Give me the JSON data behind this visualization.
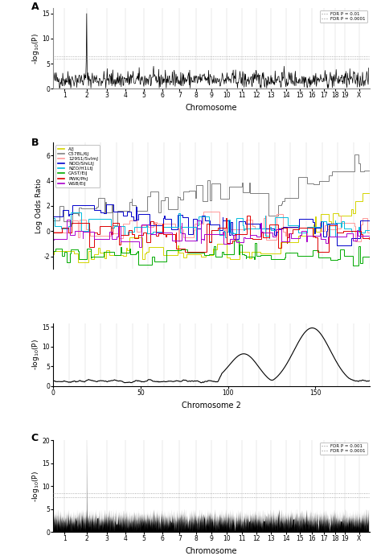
{
  "panel_A": {
    "ylabel": "-log$_{10}$(P)",
    "xlabel": "Chromosome",
    "ylim": [
      0,
      16
    ],
    "yticks": [
      0,
      5,
      10,
      15
    ],
    "fdr_line1": 6.0,
    "fdr_line2": 6.5,
    "fdr_labels": [
      "FDR P = 0.01",
      "FDR P = 0.0001"
    ],
    "chr_labels": [
      "1",
      "2",
      "3",
      "4",
      "5",
      "6",
      "7",
      "8",
      "9",
      "10",
      "11",
      "12",
      "13",
      "14",
      "15",
      "16",
      "17",
      "18",
      "19",
      "X"
    ],
    "peak_val": 15.0
  },
  "panel_B_lor": {
    "ylabel": "Log Odds Ratio",
    "ylim": [
      -3,
      7
    ],
    "yticks": [
      -2,
      0,
      2,
      4,
      6
    ],
    "strains": [
      "A/J",
      "C57BL/6J",
      "129S1/SvImJ",
      "NOD/ShiLtJ",
      "NZO/H1LtJ",
      "CAST/EiJ",
      "PWK/PhJ",
      "WSB/EiJ"
    ],
    "colors": [
      "#d4d400",
      "#808080",
      "#ff9999",
      "#0000cc",
      "#00bbdd",
      "#00aa00",
      "#dd0000",
      "#aa00cc"
    ]
  },
  "panel_B_scan": {
    "ylabel": "-log$_{10}$(P)",
    "xlabel": "Chromosome 2",
    "ylim": [
      0,
      16
    ],
    "yticks": [
      0,
      5,
      10,
      15
    ],
    "xticks": [
      0,
      50,
      100,
      150
    ]
  },
  "panel_C": {
    "ylabel": "-log$_{10}$(P)",
    "xlabel": "Chromosome",
    "ylim": [
      0,
      20
    ],
    "yticks": [
      0,
      5,
      10,
      15,
      20
    ],
    "fdr_line1": 7.5,
    "fdr_line2": 8.5,
    "fdr_labels": [
      "FDR P = 0.001",
      "FDR P = 0.0001"
    ],
    "chr_labels": [
      "1",
      "2",
      "3",
      "4",
      "5",
      "6",
      "7",
      "8",
      "9",
      "10",
      "11",
      "12",
      "13",
      "14",
      "15",
      "16",
      "17",
      "18",
      "19",
      "X"
    ],
    "peak_val": 19.5
  }
}
